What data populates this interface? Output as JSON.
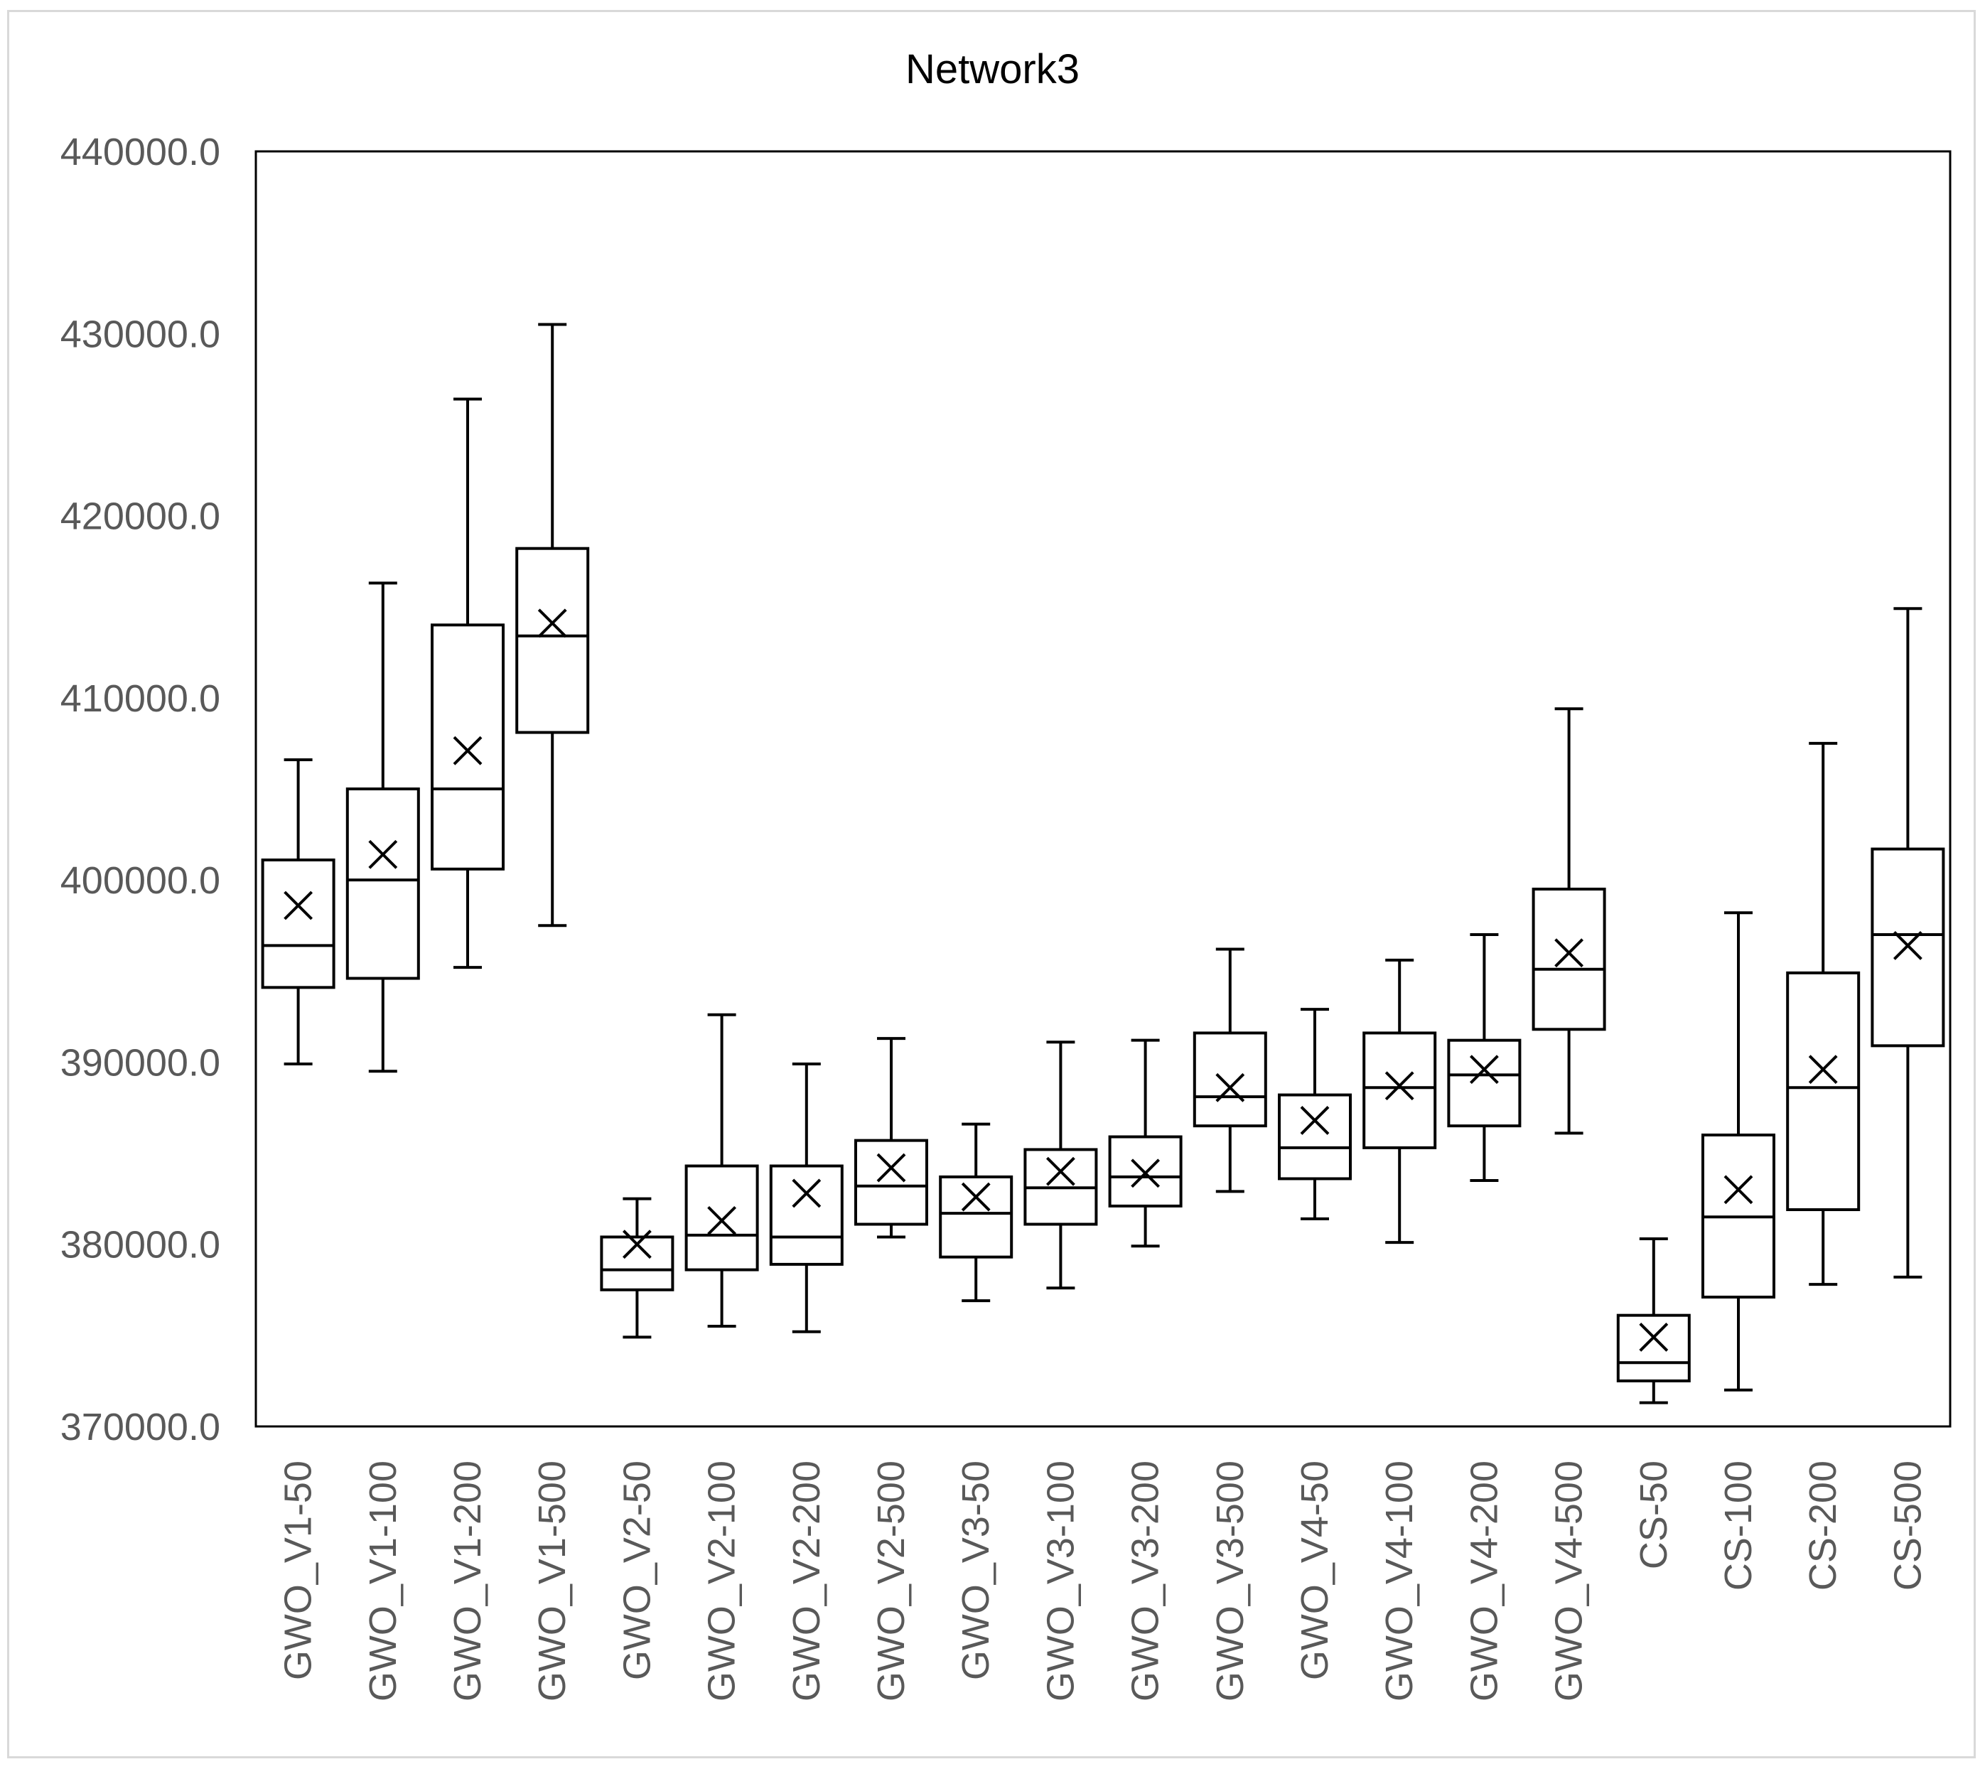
{
  "chart_data": {
    "type": "box",
    "title": "Network3",
    "xlabel": "",
    "ylabel": "",
    "ylim": [
      370000,
      440000
    ],
    "ytick_values": [
      370000,
      380000,
      390000,
      400000,
      410000,
      420000,
      430000,
      440000
    ],
    "ytick_labels": [
      "370000.0",
      "380000.0",
      "390000.0",
      "400000.0",
      "410000.0",
      "420000.0",
      "430000.0",
      "440000.0"
    ],
    "grid": false,
    "legend": "none",
    "categories": [
      "GWO_V1-50",
      "GWO_V1-100",
      "GWO_V1-200",
      "GWO_V1-500",
      "GWO_V2-50",
      "GWO_V2-100",
      "GWO_V2-200",
      "GWO_V2-500",
      "GWO_V3-50",
      "GWO_V3-100",
      "GWO_V3-200",
      "GWO_V3-500",
      "GWO_V4-50",
      "GWO_V4-100",
      "GWO_V4-200",
      "GWO_V4-500",
      "CS-50",
      "CS-100",
      "CS-200",
      "CS-500"
    ],
    "boxes": [
      {
        "min": 389900,
        "q1": 394100,
        "median": 396400,
        "q3": 401100,
        "max": 406600,
        "mean": 398600
      },
      {
        "min": 389500,
        "q1": 394600,
        "median": 400000,
        "q3": 405000,
        "max": 416300,
        "mean": 401400
      },
      {
        "min": 395200,
        "q1": 400600,
        "median": 405000,
        "q3": 414000,
        "max": 426400,
        "mean": 407100
      },
      {
        "min": 397500,
        "q1": 408100,
        "median": 413400,
        "q3": 418200,
        "max": 430500,
        "mean": 414100
      },
      {
        "min": 374900,
        "q1": 377500,
        "median": 378600,
        "q3": 380400,
        "max": 382500,
        "mean": 380000
      },
      {
        "min": 375500,
        "q1": 378600,
        "median": 380500,
        "q3": 384300,
        "max": 392600,
        "mean": 381300
      },
      {
        "min": 375200,
        "q1": 378900,
        "median": 380400,
        "q3": 384300,
        "max": 389900,
        "mean": 382800
      },
      {
        "min": 380400,
        "q1": 381100,
        "median": 383200,
        "q3": 385700,
        "max": 391300,
        "mean": 384200
      },
      {
        "min": 376900,
        "q1": 379300,
        "median": 381700,
        "q3": 383700,
        "max": 386600,
        "mean": 382600
      },
      {
        "min": 377600,
        "q1": 381100,
        "median": 383100,
        "q3": 385200,
        "max": 391100,
        "mean": 384000
      },
      {
        "min": 379900,
        "q1": 382100,
        "median": 383700,
        "q3": 385900,
        "max": 391200,
        "mean": 383900
      },
      {
        "min": 382900,
        "q1": 386500,
        "median": 388100,
        "q3": 391600,
        "max": 396200,
        "mean": 388600
      },
      {
        "min": 381400,
        "q1": 383600,
        "median": 385300,
        "q3": 388200,
        "max": 392900,
        "mean": 386800
      },
      {
        "min": 380100,
        "q1": 385300,
        "median": 388600,
        "q3": 391600,
        "max": 395600,
        "mean": 388700
      },
      {
        "min": 383500,
        "q1": 386500,
        "median": 389300,
        "q3": 391200,
        "max": 397000,
        "mean": 389600
      },
      {
        "min": 386100,
        "q1": 391800,
        "median": 395100,
        "q3": 399500,
        "max": 409400,
        "mean": 396000
      },
      {
        "min": 371300,
        "q1": 372500,
        "median": 373500,
        "q3": 376100,
        "max": 380300,
        "mean": 374900
      },
      {
        "min": 372000,
        "q1": 377100,
        "median": 381500,
        "q3": 386000,
        "max": 398200,
        "mean": 383000
      },
      {
        "min": 377800,
        "q1": 381900,
        "median": 388600,
        "q3": 394900,
        "max": 407500,
        "mean": 389600
      },
      {
        "min": 378200,
        "q1": 390900,
        "median": 397000,
        "q3": 401700,
        "max": 414900,
        "mean": 396400
      }
    ]
  }
}
